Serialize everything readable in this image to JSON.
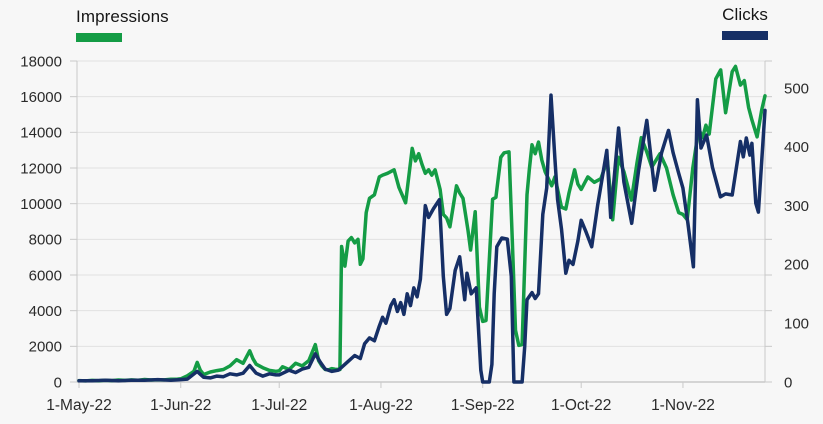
{
  "legend": {
    "impressions": {
      "label": "Impressions",
      "color": "#149c45"
    },
    "clicks": {
      "label": "Clicks",
      "color": "#162f66"
    }
  },
  "colors": {
    "background": "#f7f7f7",
    "grid": "#e1e1e1",
    "axis_border": "#c9c9c9",
    "tick": "#c9c9c9",
    "axis_text": "#2b2b2b"
  },
  "chart_data": {
    "type": "line",
    "title": "",
    "x_axis": {
      "tick_labels": [
        "1-May-22",
        "1-Jun-22",
        "1-Jul-22",
        "1-Aug-22",
        "1-Sep-22",
        "1-Oct-22",
        "1-Nov-22"
      ],
      "tick_days": [
        0,
        31,
        61,
        92,
        123,
        153,
        184
      ],
      "domain_days": [
        0,
        209
      ]
    },
    "y_axis_left": {
      "series": "Impressions",
      "range": [
        0,
        18000
      ],
      "ticks": [
        0,
        2000,
        4000,
        6000,
        8000,
        10000,
        12000,
        14000,
        16000,
        18000
      ]
    },
    "y_axis_right": {
      "series": "Clicks",
      "range": [
        0,
        546
      ],
      "ticks": [
        0,
        100,
        200,
        300,
        400,
        500
      ]
    },
    "grid": "horizontal",
    "legend_position": "top",
    "series": [
      {
        "name": "Impressions",
        "axis": "left",
        "color": "#149c45",
        "points": [
          [
            0,
            80
          ],
          [
            2,
            60
          ],
          [
            4,
            90
          ],
          [
            6,
            70
          ],
          [
            8,
            100
          ],
          [
            10,
            80
          ],
          [
            12,
            110
          ],
          [
            14,
            90
          ],
          [
            16,
            120
          ],
          [
            18,
            100
          ],
          [
            20,
            140
          ],
          [
            22,
            110
          ],
          [
            24,
            130
          ],
          [
            26,
            120
          ],
          [
            28,
            150
          ],
          [
            30,
            160
          ],
          [
            31,
            180
          ],
          [
            33,
            350
          ],
          [
            35,
            600
          ],
          [
            36,
            1100
          ],
          [
            37,
            650
          ],
          [
            38,
            420
          ],
          [
            40,
            560
          ],
          [
            42,
            640
          ],
          [
            44,
            700
          ],
          [
            46,
            900
          ],
          [
            48,
            1250
          ],
          [
            50,
            1050
          ],
          [
            52,
            1750
          ],
          [
            53,
            1300
          ],
          [
            54,
            1000
          ],
          [
            56,
            800
          ],
          [
            58,
            650
          ],
          [
            60,
            600
          ],
          [
            61,
            620
          ],
          [
            62,
            850
          ],
          [
            64,
            700
          ],
          [
            66,
            1050
          ],
          [
            68,
            900
          ],
          [
            70,
            1200
          ],
          [
            72,
            2100
          ],
          [
            73,
            1200
          ],
          [
            74,
            900
          ],
          [
            75,
            700
          ],
          [
            76,
            680
          ],
          [
            77,
            750
          ],
          [
            78,
            720
          ],
          [
            79.5,
            700
          ],
          [
            80,
            7600
          ],
          [
            81,
            6500
          ],
          [
            82,
            7900
          ],
          [
            83,
            8100
          ],
          [
            84,
            7800
          ],
          [
            85,
            8000
          ],
          [
            85.7,
            6600
          ],
          [
            86.5,
            6900
          ],
          [
            87.5,
            9500
          ],
          [
            88.5,
            10300
          ],
          [
            90,
            10500
          ],
          [
            91.5,
            11500
          ],
          [
            92.5,
            11600
          ],
          [
            94,
            11700
          ],
          [
            96,
            11900
          ],
          [
            97.5,
            10900
          ],
          [
            99.5,
            10050
          ],
          [
            101.5,
            13100
          ],
          [
            102.5,
            12400
          ],
          [
            103.5,
            12800
          ],
          [
            104.5,
            12200
          ],
          [
            105.5,
            11700
          ],
          [
            106.5,
            11900
          ],
          [
            107.5,
            11600
          ],
          [
            108.5,
            11900
          ],
          [
            110,
            10800
          ],
          [
            111,
            9400
          ],
          [
            112,
            9200
          ],
          [
            113,
            8700
          ],
          [
            115,
            11000
          ],
          [
            116,
            10600
          ],
          [
            117,
            10300
          ],
          [
            118.5,
            8500
          ],
          [
            119.3,
            7400
          ],
          [
            120.7,
            9550
          ],
          [
            122,
            4200
          ],
          [
            123,
            3400
          ],
          [
            124,
            3450
          ],
          [
            126,
            10250
          ],
          [
            127,
            10350
          ],
          [
            128.5,
            12600
          ],
          [
            129.5,
            12850
          ],
          [
            131,
            12900
          ],
          [
            132,
            7950
          ],
          [
            133,
            2900
          ],
          [
            134,
            2050
          ],
          [
            135,
            2100
          ],
          [
            136.5,
            10500
          ],
          [
            137.2,
            11900
          ],
          [
            138,
            13300
          ],
          [
            139,
            12800
          ],
          [
            140,
            13450
          ],
          [
            141,
            12450
          ],
          [
            142,
            11800
          ],
          [
            144,
            11000
          ],
          [
            145,
            11500
          ],
          [
            147,
            9800
          ],
          [
            148.3,
            9700
          ],
          [
            149.3,
            10600
          ],
          [
            151,
            11900
          ],
          [
            152,
            11100
          ],
          [
            153,
            10800
          ],
          [
            155,
            11500
          ],
          [
            157,
            11200
          ],
          [
            159,
            11400
          ],
          [
            161,
            12450
          ],
          [
            162.6,
            9100
          ],
          [
            164.3,
            12600
          ],
          [
            166,
            11800
          ],
          [
            168.3,
            10200
          ],
          [
            170,
            12300
          ],
          [
            171.3,
            13700
          ],
          [
            173,
            12900
          ],
          [
            174.5,
            12050
          ],
          [
            177,
            12800
          ],
          [
            179,
            12000
          ],
          [
            181,
            10500
          ],
          [
            182.7,
            9500
          ],
          [
            184,
            9400
          ],
          [
            185.3,
            9100
          ],
          [
            187,
            12000
          ],
          [
            188.8,
            14200
          ],
          [
            190,
            13700
          ],
          [
            191,
            14400
          ],
          [
            192,
            13900
          ],
          [
            194,
            17000
          ],
          [
            195.5,
            17500
          ],
          [
            197,
            15100
          ],
          [
            199,
            17400
          ],
          [
            200,
            17700
          ],
          [
            201.5,
            16650
          ],
          [
            202.7,
            16900
          ],
          [
            204,
            15400
          ],
          [
            205,
            14700
          ],
          [
            206.6,
            13750
          ],
          [
            208,
            15250
          ],
          [
            209,
            16050
          ]
        ]
      },
      {
        "name": "Clicks",
        "axis": "right",
        "color": "#162f66",
        "points": [
          [
            0,
            2
          ],
          [
            4,
            2
          ],
          [
            8,
            3
          ],
          [
            12,
            2
          ],
          [
            16,
            3
          ],
          [
            20,
            3
          ],
          [
            24,
            4
          ],
          [
            28,
            3
          ],
          [
            31,
            4
          ],
          [
            33,
            5
          ],
          [
            36,
            18
          ],
          [
            38,
            8
          ],
          [
            40,
            7
          ],
          [
            42,
            10
          ],
          [
            44,
            9
          ],
          [
            46,
            14
          ],
          [
            48,
            12
          ],
          [
            50,
            15
          ],
          [
            52,
            28
          ],
          [
            54,
            15
          ],
          [
            56,
            10
          ],
          [
            58,
            14
          ],
          [
            60,
            12
          ],
          [
            61,
            12
          ],
          [
            64,
            20
          ],
          [
            66,
            16
          ],
          [
            68,
            22
          ],
          [
            70,
            25
          ],
          [
            72,
            48
          ],
          [
            73.5,
            34
          ],
          [
            75,
            22
          ],
          [
            77,
            18
          ],
          [
            79,
            20
          ],
          [
            80,
            25
          ],
          [
            82,
            35
          ],
          [
            84,
            45
          ],
          [
            85.7,
            40
          ],
          [
            87,
            65
          ],
          [
            88.5,
            75
          ],
          [
            90,
            70
          ],
          [
            91.5,
            95
          ],
          [
            92.5,
            110
          ],
          [
            93.5,
            100
          ],
          [
            95,
            130
          ],
          [
            96,
            140
          ],
          [
            97,
            120
          ],
          [
            98,
            135
          ],
          [
            99,
            115
          ],
          [
            100,
            150
          ],
          [
            101,
            130
          ],
          [
            102,
            160
          ],
          [
            103,
            145
          ],
          [
            104,
            175
          ],
          [
            105.5,
            300
          ],
          [
            106.5,
            280
          ],
          [
            108,
            295
          ],
          [
            109.8,
            310
          ],
          [
            111,
            180
          ],
          [
            112,
            115
          ],
          [
            113,
            125
          ],
          [
            114.6,
            190
          ],
          [
            116,
            213
          ],
          [
            117.5,
            140
          ],
          [
            118.2,
            185
          ],
          [
            119.5,
            150
          ],
          [
            121,
            160
          ],
          [
            122.4,
            20
          ],
          [
            123,
            0
          ],
          [
            125,
            0
          ],
          [
            125.8,
            30
          ],
          [
            126.5,
            150
          ],
          [
            127.3,
            230
          ],
          [
            128.8,
            245
          ],
          [
            130.5,
            243
          ],
          [
            131.7,
            180
          ],
          [
            132.5,
            0
          ],
          [
            135,
            0
          ],
          [
            135.8,
            60
          ],
          [
            136.5,
            140
          ],
          [
            138,
            152
          ],
          [
            139,
            142
          ],
          [
            140,
            150
          ],
          [
            141.3,
            285
          ],
          [
            142.5,
            330
          ],
          [
            143.8,
            488
          ],
          [
            145,
            380
          ],
          [
            145.8,
            310
          ],
          [
            147,
            260
          ],
          [
            148.3,
            185
          ],
          [
            149.3,
            207
          ],
          [
            150.5,
            200
          ],
          [
            152,
            240
          ],
          [
            153,
            275
          ],
          [
            154.5,
            255
          ],
          [
            156.2,
            230
          ],
          [
            158,
            300
          ],
          [
            160.8,
            394
          ],
          [
            162,
            280
          ],
          [
            164.4,
            432
          ],
          [
            166,
            340
          ],
          [
            168.4,
            270
          ],
          [
            170.5,
            360
          ],
          [
            173,
            445
          ],
          [
            175.4,
            326
          ],
          [
            177.5,
            390
          ],
          [
            179.6,
            428
          ],
          [
            181,
            390
          ],
          [
            182.7,
            355
          ],
          [
            184,
            330
          ],
          [
            185.5,
            270
          ],
          [
            187.2,
            196
          ],
          [
            188.4,
            480
          ],
          [
            189.5,
            398
          ],
          [
            191.2,
            420
          ],
          [
            193,
            365
          ],
          [
            195.4,
            315
          ],
          [
            197,
            320
          ],
          [
            199,
            318
          ],
          [
            201.5,
            409
          ],
          [
            202.4,
            383
          ],
          [
            203.3,
            415
          ],
          [
            204.4,
            386
          ],
          [
            205,
            406
          ],
          [
            206.2,
            304
          ],
          [
            207,
            289
          ],
          [
            209,
            462
          ]
        ]
      }
    ]
  }
}
